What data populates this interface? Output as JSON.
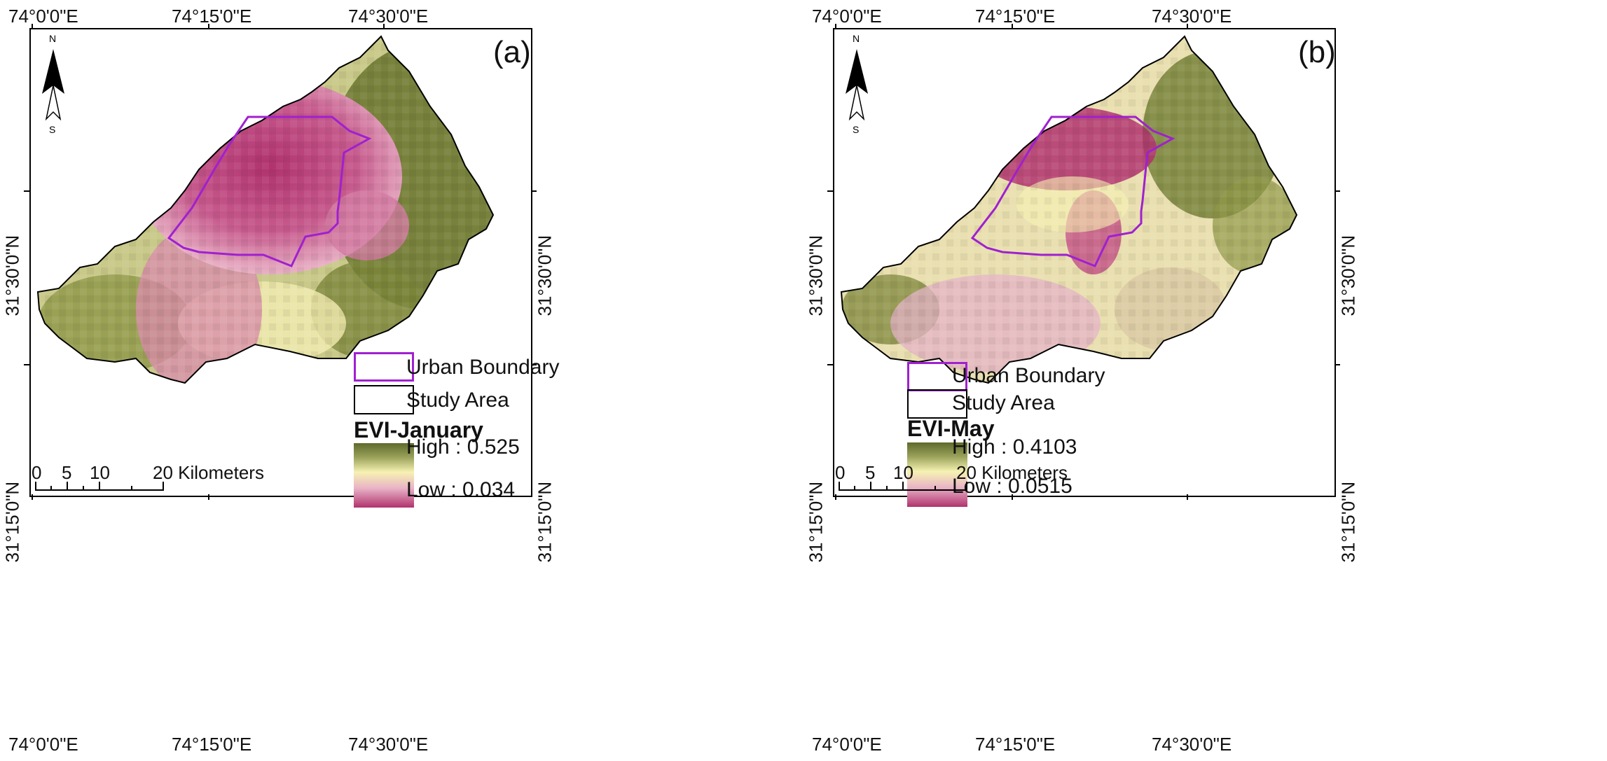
{
  "panels": [
    {
      "label": "(a)",
      "coords": {
        "lon": [
          "74°0'0\"E",
          "74°15'0\"E",
          "74°30'0\"E"
        ],
        "lat": [
          "31°30'0\"N",
          "31°15'0\"N"
        ]
      },
      "north": {
        "n": "N",
        "s": "S"
      },
      "legend": {
        "urban_boundary": "Urban Boundary",
        "study_area": "Study Area",
        "title": "EVI-January",
        "high": "High : 0.525",
        "low": "Low : 0.034"
      },
      "scale": {
        "labels": [
          "0",
          "5",
          "10",
          "20 Kilometers"
        ]
      }
    },
    {
      "label": "(b)",
      "coords": {
        "lon": [
          "74°0'0\"E",
          "74°15'0\"E",
          "74°30'0\"E"
        ],
        "lat": [
          "31°30'0\"N",
          "31°15'0\"N"
        ]
      },
      "north": {
        "n": "N",
        "s": "S"
      },
      "legend": {
        "urban_boundary": "Urban Boundary",
        "study_area": "Study Area",
        "title": "EVI-May",
        "high": "High : 0.4103",
        "low": "Low : 0.0515"
      },
      "scale": {
        "labels": [
          "0",
          "5",
          "10",
          "20 Kilometers"
        ]
      }
    }
  ],
  "colors": {
    "urban_boundary": "#a020d0",
    "study_area": "#000000",
    "evi_high": "#5f6a2c",
    "evi_mid": "#f6f2b2",
    "evi_low": "#b0326e"
  }
}
